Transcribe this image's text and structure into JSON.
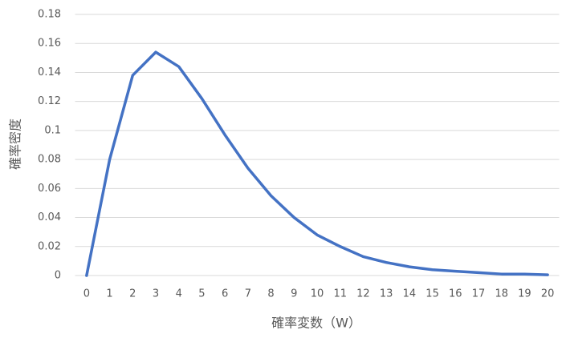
{
  "chart_data": {
    "type": "line",
    "x_label": "確率変数（W）",
    "y_label": "確率密度",
    "categories": [
      "0",
      "1",
      "2",
      "3",
      "4",
      "5",
      "6",
      "7",
      "8",
      "9",
      "10",
      "11",
      "12",
      "13",
      "14",
      "15",
      "16",
      "17",
      "18",
      "19",
      "20"
    ],
    "values": [
      0,
      0.08,
      0.138,
      0.154,
      0.144,
      0.122,
      0.097,
      0.074,
      0.055,
      0.04,
      0.028,
      0.02,
      0.013,
      0.009,
      0.006,
      0.004,
      0.003,
      0.002,
      0.001,
      0.001,
      0.0005
    ],
    "color": "#4472c4",
    "ylim": [
      0,
      0.18
    ],
    "yticks": [
      0,
      0.02,
      0.04,
      0.06,
      0.08,
      0.1,
      0.12,
      0.14,
      0.16,
      0.18
    ],
    "grid": true
  }
}
